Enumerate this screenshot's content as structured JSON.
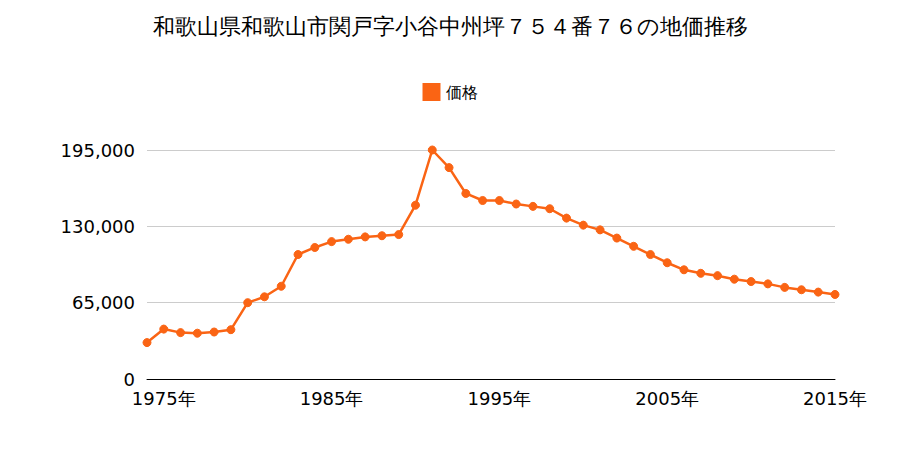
{
  "chart_data": {
    "type": "line",
    "title": "和歌山県和歌山市関戸字小谷中州坪７５４番７６の地価推移",
    "x": [
      1974,
      1975,
      1976,
      1977,
      1978,
      1979,
      1980,
      1981,
      1982,
      1983,
      1984,
      1985,
      1986,
      1987,
      1988,
      1989,
      1990,
      1991,
      1992,
      1993,
      1994,
      1995,
      1996,
      1997,
      1998,
      1999,
      2000,
      2001,
      2002,
      2003,
      2004,
      2005,
      2006,
      2007,
      2008,
      2009,
      2010,
      2011,
      2012,
      2013,
      2014,
      2015
    ],
    "series": [
      {
        "name": "価格",
        "color": "#fa6414",
        "values": [
          31000,
          42500,
          39500,
          39000,
          40000,
          42000,
          65000,
          70000,
          79000,
          106000,
          112000,
          117000,
          119000,
          121000,
          122000,
          123000,
          148000,
          195000,
          180000,
          158000,
          152000,
          152000,
          149000,
          147000,
          145000,
          137000,
          131000,
          127000,
          120000,
          113000,
          106000,
          99000,
          93000,
          90000,
          88000,
          85000,
          83000,
          81000,
          78000,
          76000,
          74000,
          72000
        ]
      }
    ],
    "xlim": [
      1974,
      2015
    ],
    "xticks": [
      {
        "value": 1975,
        "label": "1975年"
      },
      {
        "value": 1985,
        "label": "1985年"
      },
      {
        "value": 1995,
        "label": "1995年"
      },
      {
        "value": 2005,
        "label": "2005年"
      },
      {
        "value": 2015,
        "label": "2015年"
      }
    ],
    "ylim": [
      0,
      195000
    ],
    "yticks": [
      0,
      {
        "value": 65000,
        "label": "65,000"
      },
      {
        "value": 130000,
        "label": "130,000"
      },
      {
        "value": 195000,
        "label": "195,000"
      }
    ],
    "grid": true,
    "legend": "top",
    "marker": "circle"
  }
}
